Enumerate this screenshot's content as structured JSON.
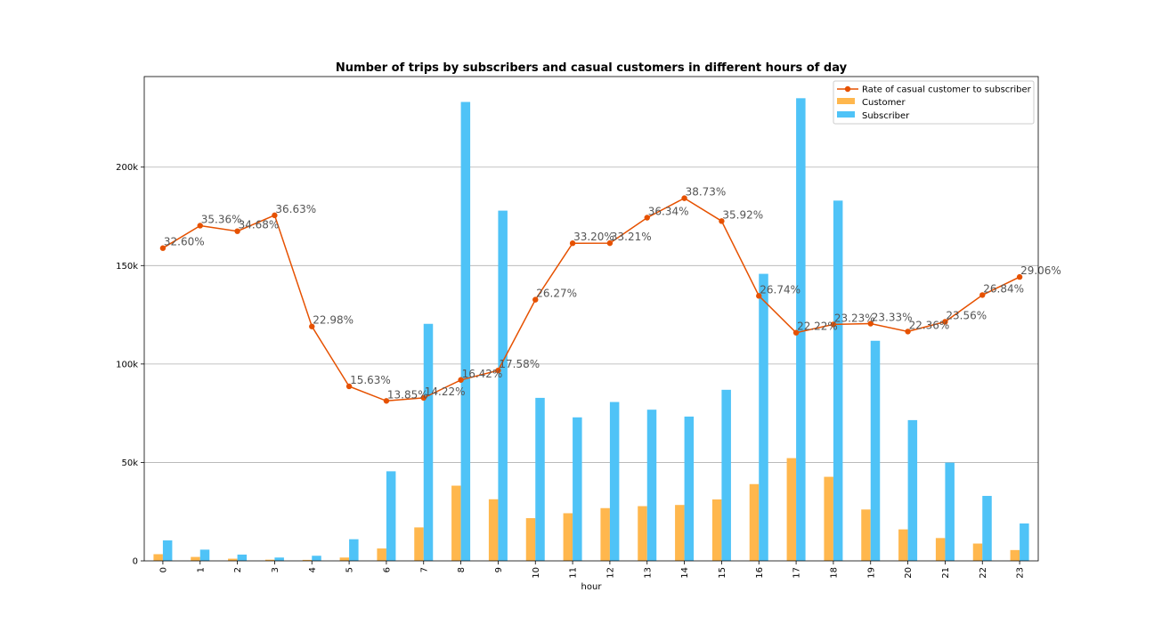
{
  "chart_data": {
    "type": "bar",
    "title": "Number of trips by subscribers and casual customers in different hours of day",
    "xlabel": "hour",
    "ylabel": "",
    "categories": [
      "0",
      "1",
      "2",
      "3",
      "4",
      "5",
      "6",
      "7",
      "8",
      "9",
      "10",
      "11",
      "12",
      "13",
      "14",
      "15",
      "16",
      "17",
      "18",
      "19",
      "20",
      "21",
      "22",
      "23"
    ],
    "ylim": [
      0,
      246000
    ],
    "yticks": [
      0,
      50000,
      100000,
      150000,
      200000
    ],
    "ytick_labels": [
      "0",
      "50k",
      "100k",
      "150k",
      "200k"
    ],
    "grid": "y",
    "legend_position": "top-right",
    "series": [
      {
        "name": "Customer",
        "kind": "bar",
        "color": "#ffb74d",
        "values": [
          3400,
          2000,
          1100,
          600,
          500,
          1700,
          6300,
          17000,
          38200,
          31300,
          21700,
          24200,
          26800,
          27800,
          28400,
          31200,
          39000,
          52200,
          42700,
          26100,
          16000,
          11600,
          8800,
          5500
        ]
      },
      {
        "name": "Subscriber",
        "kind": "bar",
        "color": "#4fc3f7",
        "values": [
          10400,
          5700,
          3200,
          1700,
          2600,
          11000,
          45500,
          120400,
          233100,
          177900,
          82800,
          72900,
          80700,
          76800,
          73300,
          86900,
          145800,
          235000,
          183000,
          111800,
          71500,
          49900,
          33000,
          19000
        ]
      },
      {
        "name": "Rate of casual customer to subscriber",
        "kind": "line",
        "color": "#e65100",
        "values": [
          32.6,
          35.36,
          34.68,
          36.63,
          22.98,
          15.63,
          13.85,
          14.22,
          16.42,
          17.58,
          26.27,
          33.2,
          33.21,
          36.34,
          38.73,
          35.92,
          26.74,
          22.22,
          23.23,
          23.33,
          22.36,
          23.56,
          26.84,
          29.06
        ],
        "labels": [
          "32.60%",
          "35.36%",
          "34.68%",
          "36.63%",
          "22.98%",
          "15.63%",
          "13.85%",
          "14.22%",
          "16.42%",
          "17.58%",
          "26.27%",
          "33.20%",
          "33.21%",
          "36.34%",
          "38.73%",
          "35.92%",
          "26.74%",
          "22.22%",
          "23.23%",
          "23.33%",
          "22.36%",
          "23.56%",
          "26.84%",
          "29.06%"
        ]
      }
    ]
  }
}
